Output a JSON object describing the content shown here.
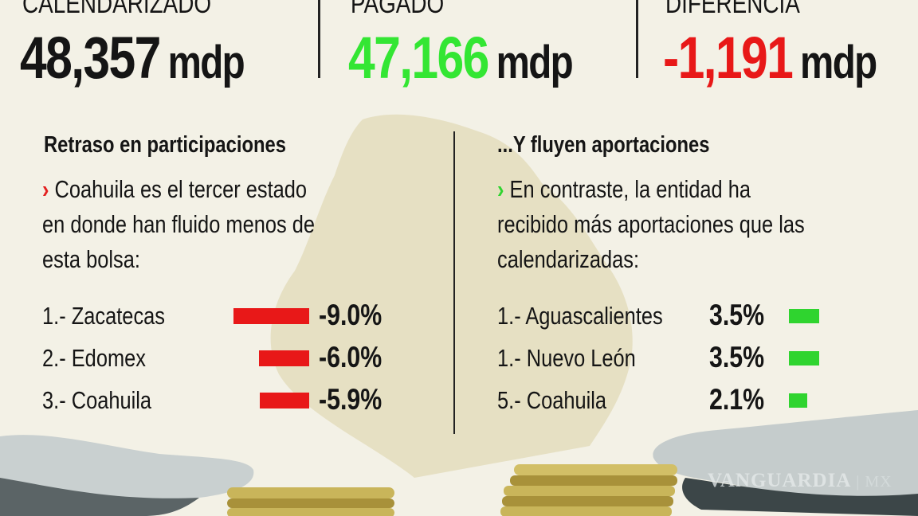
{
  "totals": [
    {
      "label": "CALENDARIZADO",
      "value": "48,357",
      "unit": "mdp",
      "color": "#151515"
    },
    {
      "label": "PAGADO",
      "value": "47,166",
      "unit": "mdp",
      "color": "#33e633"
    },
    {
      "label": "DIFERENCIA",
      "value": "-1,191",
      "unit": "mdp",
      "color": "#e81818"
    }
  ],
  "left": {
    "heading": "Retraso en participaciones",
    "text_line1": "Coahuila es el tercer estado",
    "text_line2": "en donde han fluido menos de",
    "text_line3": "esta bolsa:"
  },
  "right": {
    "heading": "...Y fluyen aportaciones",
    "text_line1": "En contraste, la entidad ha",
    "text_line2": "recibido más aportaciones que las",
    "text_line3": "calendarizadas:"
  },
  "watermark": "VANGUARDIA MX",
  "chart_data": [
    {
      "type": "bar",
      "orientation": "horizontal",
      "categories": [
        "1.- Zacatecas",
        "2.- Edomex",
        "3.- Coahuila"
      ],
      "values": [
        -9.0,
        -6.0,
        -5.9
      ],
      "labels": [
        "-9.0%",
        "-6.0%",
        "-5.9%"
      ],
      "color": "#e81818"
    },
    {
      "type": "bar",
      "orientation": "horizontal",
      "categories": [
        "1.- Aguascalientes",
        "1.- Nuevo León",
        "5.- Coahuila"
      ],
      "values": [
        3.5,
        3.5,
        2.1
      ],
      "labels": [
        "3.5%",
        "3.5%",
        "2.1%"
      ],
      "color": "#2fd42f"
    }
  ]
}
